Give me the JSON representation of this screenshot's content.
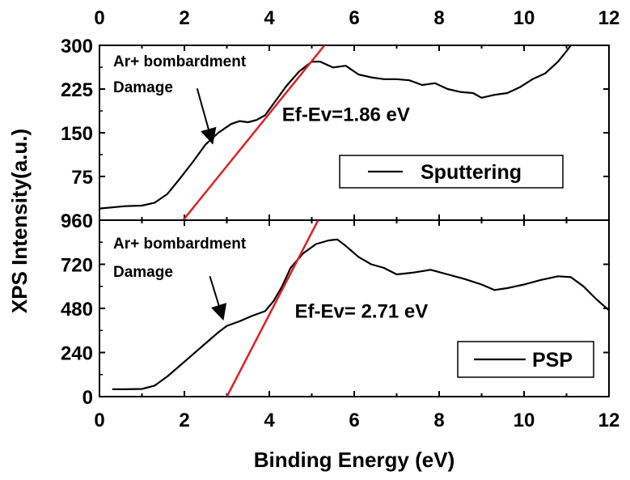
{
  "chart_data": {
    "type": "line",
    "xlabel": "Binding Energy (eV)",
    "ylabel": "XPS Intensity(a.u.)",
    "xlim": [
      0,
      12
    ],
    "xticks": [
      "0",
      "2",
      "4",
      "6",
      "8",
      "10",
      "12"
    ],
    "grid": false,
    "panels": [
      {
        "id": "top",
        "ylim": [
          0,
          300
        ],
        "yticks": [
          {
            "value": 75,
            "label": "75"
          },
          {
            "value": 150,
            "label": "150"
          },
          {
            "value": 225,
            "label": "225"
          },
          {
            "value": 300,
            "label": "300"
          }
        ],
        "legend": {
          "label": "Sputtering",
          "placement": "bottom-right"
        },
        "annotation": {
          "line1": "Ar+  bombardment",
          "line2": "Damage",
          "arrow_from": [
            2.3,
            226
          ],
          "arrow_to": [
            2.65,
            135
          ]
        },
        "ef_label": {
          "text": "Ef-Ev=1.86 eV",
          "x": 4.3,
          "y": 170
        },
        "fit_line": {
          "x": [
            1.97,
            5.3
          ],
          "y": [
            0,
            300
          ],
          "color": "#e02020"
        },
        "series": {
          "color": "#000000",
          "x": [
            0.0,
            0.3,
            0.6,
            1.0,
            1.3,
            1.6,
            1.9,
            2.2,
            2.5,
            2.8,
            3.1,
            3.3,
            3.5,
            3.7,
            3.9,
            4.1,
            4.4,
            4.7,
            5.0,
            5.2,
            5.5,
            5.8,
            6.1,
            6.4,
            6.7,
            7.0,
            7.3,
            7.6,
            7.9,
            8.2,
            8.5,
            8.8,
            9.0,
            9.3,
            9.6,
            9.9,
            10.2,
            10.5,
            10.8,
            11.0,
            11.1
          ],
          "y": [
            20,
            22,
            24,
            25,
            30,
            45,
            72,
            100,
            130,
            150,
            165,
            170,
            168,
            172,
            180,
            200,
            230,
            255,
            272,
            272,
            262,
            265,
            250,
            245,
            242,
            242,
            240,
            232,
            235,
            225,
            220,
            218,
            210,
            215,
            218,
            228,
            242,
            252,
            272,
            290,
            300
          ]
        }
      },
      {
        "id": "bottom",
        "ylim": [
          0,
          960
        ],
        "yticks": [
          {
            "value": 0,
            "label": "0"
          },
          {
            "value": 240,
            "label": "240"
          },
          {
            "value": 480,
            "label": "480"
          },
          {
            "value": 720,
            "label": "720"
          },
          {
            "value": 960,
            "label": "960"
          }
        ],
        "legend": {
          "label": "PSP",
          "placement": "bottom-right"
        },
        "annotation": {
          "line1": "Ar+  bombardment",
          "line2": "Damage",
          "arrow_from": [
            2.6,
            655
          ],
          "arrow_to": [
            2.9,
            430
          ]
        },
        "ef_label": {
          "text": "Ef-Ev= 2.71 eV",
          "x": 4.6,
          "y": 430
        },
        "fit_line": {
          "x": [
            3.0,
            5.15
          ],
          "y": [
            0,
            960
          ],
          "color": "#e02020"
        },
        "series": {
          "color": "#000000",
          "x": [
            0.3,
            0.6,
            1.0,
            1.3,
            1.6,
            2.0,
            2.4,
            2.8,
            3.0,
            3.3,
            3.6,
            3.9,
            4.1,
            4.3,
            4.5,
            4.8,
            5.1,
            5.4,
            5.6,
            5.8,
            6.1,
            6.4,
            6.7,
            7.0,
            7.4,
            7.8,
            8.2,
            8.6,
            9.0,
            9.3,
            9.6,
            10.0,
            10.4,
            10.8,
            11.1,
            11.4,
            11.7,
            12.0
          ],
          "y": [
            40,
            40,
            42,
            60,
            110,
            190,
            270,
            350,
            385,
            410,
            440,
            465,
            520,
            600,
            700,
            780,
            830,
            850,
            855,
            820,
            760,
            720,
            700,
            665,
            675,
            690,
            665,
            640,
            610,
            580,
            590,
            610,
            635,
            655,
            650,
            600,
            530,
            470
          ]
        }
      }
    ]
  }
}
